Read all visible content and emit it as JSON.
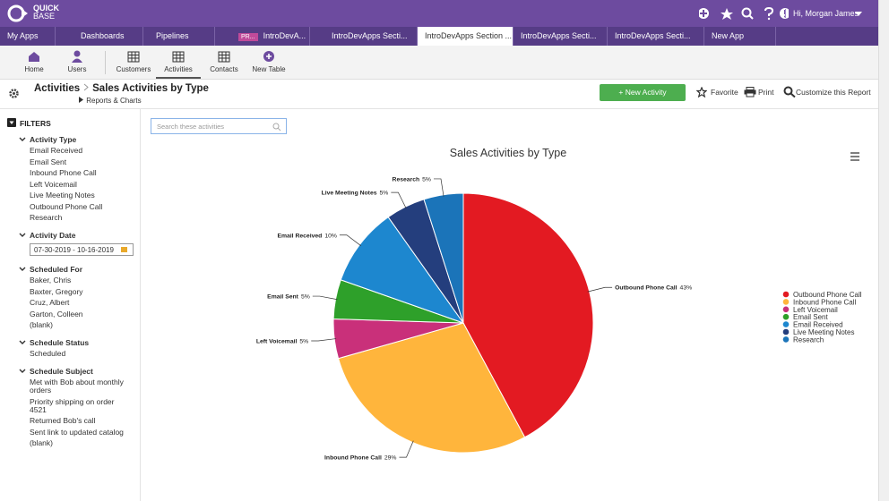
{
  "header": {
    "logo": [
      "QUICK",
      "BASE"
    ],
    "greeting": "Hi, Morgan James"
  },
  "tabs": [
    {
      "label": "My Apps"
    },
    {
      "label": "Dashboards"
    },
    {
      "label": "Pipelines"
    },
    {
      "badge": "PR...",
      "label": "IntroDevA..."
    },
    {
      "label": "IntroDevApps Secti..."
    },
    {
      "label": "IntroDevApps Section ...",
      "active": true
    },
    {
      "label": "IntroDevApps Secti..."
    },
    {
      "label": "IntroDevApps Secti..."
    },
    {
      "label": "New App"
    }
  ],
  "toolbar": [
    {
      "label": "Home"
    },
    {
      "label": "Users"
    },
    {
      "label": "Customers"
    },
    {
      "label": "Activities",
      "active": true
    },
    {
      "label": "Contacts"
    },
    {
      "label": "New Table"
    }
  ],
  "breadcrumb": {
    "table": "Activities",
    "report": "Sales Activities by Type",
    "sub": "Reports & Charts"
  },
  "actions": {
    "new": "+ New Activity",
    "favorite": "Favorite",
    "print": "Print",
    "customize": "Customize this Report"
  },
  "filters": {
    "title": "FILTERS",
    "search": "Search these activities",
    "groups": [
      {
        "title": "Activity Type",
        "items": [
          "Email Received",
          "Email Sent",
          "Inbound Phone Call",
          "Left Voicemail",
          "Live Meeting Notes",
          "Outbound Phone Call",
          "Research"
        ]
      },
      {
        "title": "Activity Date",
        "input": "07-30-2019 - 10-16-2019"
      },
      {
        "title": "Scheduled For",
        "items": [
          "Baker, Chris",
          "Baxter, Gregory",
          "Cruz, Albert",
          "Garton, Colleen",
          "(blank)"
        ]
      },
      {
        "title": "Schedule Status",
        "items": [
          "Scheduled"
        ]
      },
      {
        "title": "Schedule Subject",
        "items": [
          "Met with Bob about monthly orders",
          "Priority shipping on order 4521",
          "Returned Bob's call",
          "Sent link to updated catalog",
          "(blank)"
        ]
      }
    ]
  },
  "chart_data": {
    "type": "pie",
    "title": "Sales Activities by Type",
    "categories": [
      "Outbound Phone Call",
      "Inbound Phone Call",
      "Left Voicemail",
      "Email Sent",
      "Email Received",
      "Live Meeting Notes",
      "Research"
    ],
    "values": [
      43,
      29,
      5,
      5,
      10,
      5,
      5
    ],
    "value_labels": [
      "43%",
      "29%",
      "5%",
      "5%",
      "10%",
      "5%",
      "5%"
    ],
    "colors": [
      "#e31a22",
      "#ffb53c",
      "#c9307a",
      "#2ea02a",
      "#1d87cf",
      "#243e7d",
      "#1b74b9"
    ],
    "legend": "right"
  }
}
